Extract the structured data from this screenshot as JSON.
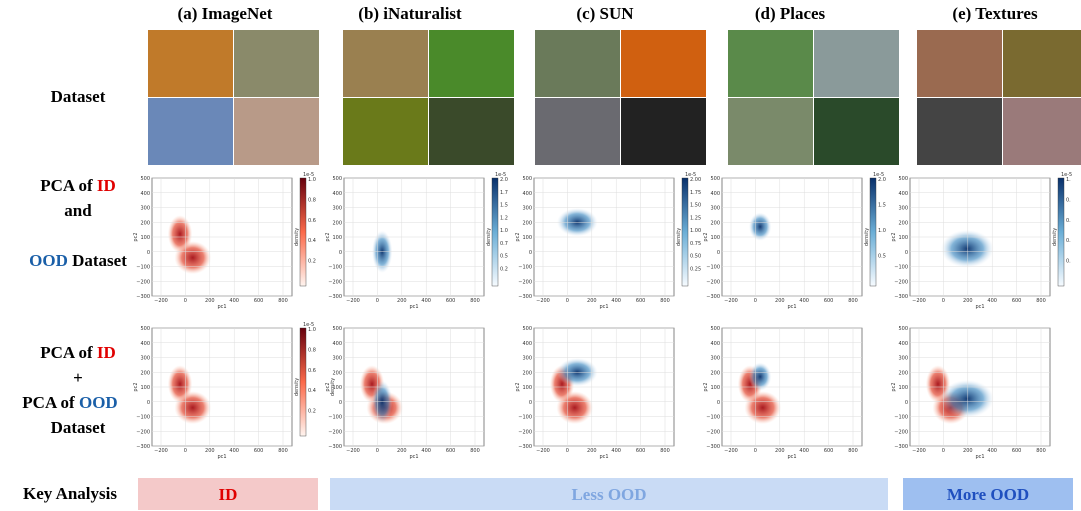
{
  "columns": [
    {
      "title": "(a) ImageNet",
      "colorbar": {
        "exponent": "1e-5",
        "ticks": [
          "1.0",
          "0.8",
          "0.6",
          "0.4",
          "0.2"
        ]
      }
    },
    {
      "title": "(b) iNaturalist",
      "colorbar": {
        "exponent": "1e-5",
        "ticks": [
          "2.0",
          "1.7",
          "1.5",
          "1.2",
          "1.0",
          "0.7",
          "0.5",
          "0.2"
        ]
      }
    },
    {
      "title": "(c) SUN",
      "colorbar": {
        "exponent": "1e-5",
        "ticks": [
          "2.00",
          "1.75",
          "1.50",
          "1.25",
          "1.00",
          "0.75",
          "0.50",
          "0.25"
        ]
      }
    },
    {
      "title": "(d) Places",
      "colorbar": {
        "exponent": "1e-5",
        "ticks": [
          "2.0",
          "1.5",
          "1.0",
          "0.5"
        ]
      }
    },
    {
      "title": "(e) Textures",
      "colorbar": {
        "exponent": "1e-5",
        "ticks": [
          "1.",
          "0.",
          "0.",
          "0.",
          "0."
        ]
      }
    }
  ],
  "row_labels": {
    "dataset": "Dataset",
    "pca_joint": [
      "PCA of ",
      "ID",
      "and",
      "OOD",
      " Dataset"
    ],
    "pca_separate": [
      "PCA of ",
      "ID",
      "+",
      "PCA of ",
      "OOD",
      "Dataset"
    ],
    "key_analysis": "Key Analysis"
  },
  "axes": {
    "xlabel": "pc1",
    "ylabel": "pc2",
    "colorbar_label": "density",
    "xticks": [
      "−200",
      "0",
      "200",
      "400",
      "600",
      "800"
    ],
    "yticks": [
      "500",
      "400",
      "300",
      "200",
      "100",
      "0",
      "−100",
      "−200",
      "−300"
    ]
  },
  "key_analysis": [
    "ID",
    "Less OOD",
    "More OOD"
  ]
}
